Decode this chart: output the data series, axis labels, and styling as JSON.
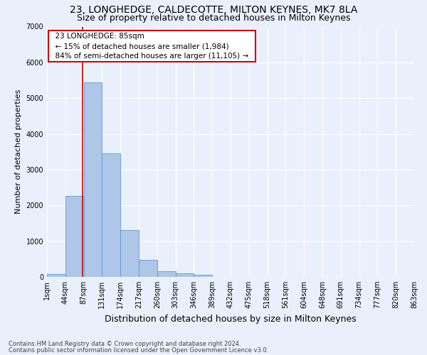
{
  "title": "23, LONGHEDGE, CALDECOTTE, MILTON KEYNES, MK7 8LA",
  "subtitle": "Size of property relative to detached houses in Milton Keynes",
  "xlabel": "Distribution of detached houses by size in Milton Keynes",
  "ylabel": "Number of detached properties",
  "footer_line1": "Contains HM Land Registry data © Crown copyright and database right 2024.",
  "footer_line2": "Contains public sector information licensed under the Open Government Licence v3.0.",
  "annotation_title": "23 LONGHEDGE: 85sqm",
  "annotation_line2": "← 15% of detached houses are smaller (1,984)",
  "annotation_line3": "84% of semi-detached houses are larger (11,105) →",
  "bar_values": [
    80,
    2270,
    5450,
    3450,
    1320,
    470,
    160,
    95,
    60,
    0,
    0,
    0,
    0,
    0,
    0,
    0,
    0,
    0,
    0,
    0
  ],
  "bin_labels": [
    "1sqm",
    "44sqm",
    "87sqm",
    "131sqm",
    "174sqm",
    "217sqm",
    "260sqm",
    "303sqm",
    "346sqm",
    "389sqm",
    "432sqm",
    "475sqm",
    "518sqm",
    "561sqm",
    "604sqm",
    "648sqm",
    "691sqm",
    "734sqm",
    "777sqm",
    "820sqm",
    "863sqm"
  ],
  "bar_color": "#aec6e8",
  "bar_edge_color": "#5b9bd5",
  "background_color": "#eaf0fb",
  "grid_color": "#ffffff",
  "annotation_box_color": "#ffffff",
  "annotation_box_edge": "#cc0000",
  "red_line_color": "#cc0000",
  "ylim": [
    0,
    7000
  ],
  "yticks": [
    0,
    1000,
    2000,
    3000,
    4000,
    5000,
    6000,
    7000
  ],
  "title_fontsize": 10,
  "subtitle_fontsize": 9,
  "xlabel_fontsize": 9,
  "ylabel_fontsize": 8,
  "tick_fontsize": 7,
  "footer_fontsize": 6,
  "annotation_fontsize": 7.5
}
